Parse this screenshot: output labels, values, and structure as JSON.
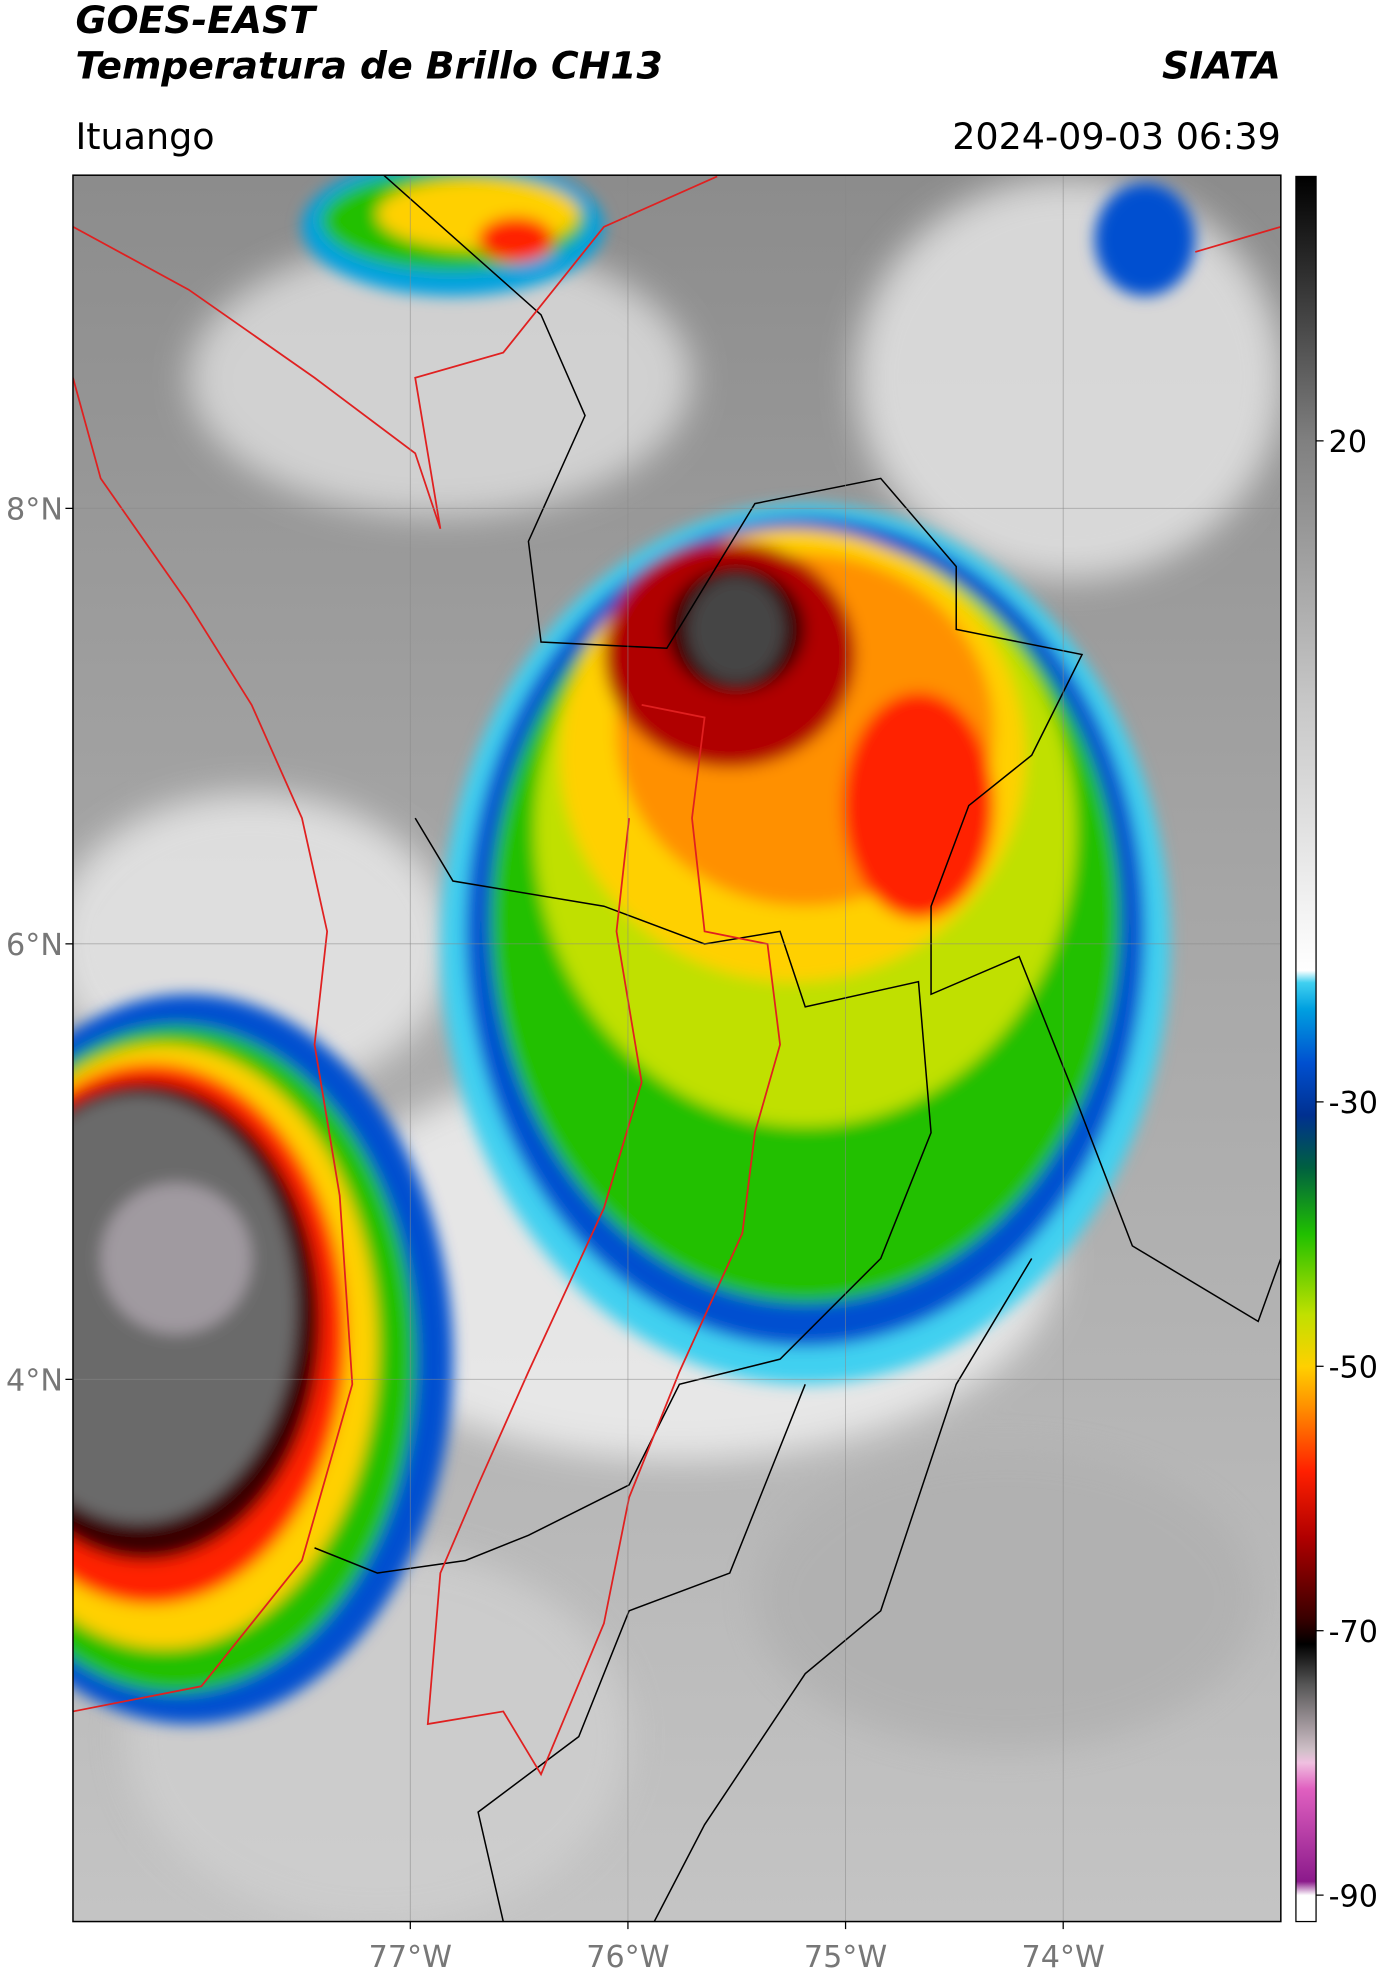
{
  "header": {
    "title": "GOES-EAST",
    "subtitle": "Temperatura de Brillo CH13",
    "agency": "SIATA",
    "location": "Ituango",
    "timestamp": "2024-09-03 06:39"
  },
  "map": {
    "lon_range": [
      -78.55,
      -73.0
    ],
    "lat_range": [
      1.51,
      9.53
    ],
    "lon_ticks": [
      {
        "value": -77,
        "label": "77°W"
      },
      {
        "value": -76,
        "label": "76°W"
      },
      {
        "value": -75,
        "label": "75°W"
      },
      {
        "value": -74,
        "label": "74°W"
      }
    ],
    "lat_ticks": [
      {
        "value": 8,
        "label": "8°N"
      },
      {
        "value": 6,
        "label": "6°N"
      },
      {
        "value": 4,
        "label": "4°N"
      }
    ]
  },
  "colorbar": {
    "range": [
      -92,
      40
    ],
    "ticks": [
      20,
      -30,
      -50,
      -70,
      -90
    ]
  }
}
